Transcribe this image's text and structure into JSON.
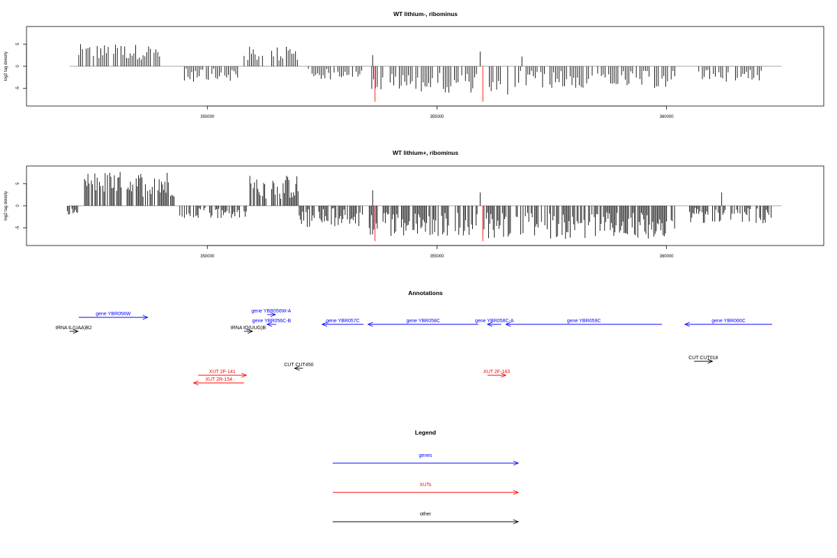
{
  "colors": {
    "gene": "#0000ff",
    "xut": "#ff0000",
    "other": "#000000",
    "highlight": "#ff4444",
    "axis": "#000000",
    "baseline": "#888888"
  },
  "chart_data": [
    {
      "type": "bar",
      "title": "WT lithium-, ribominus",
      "ylabel": "log2 tag density",
      "xlim": [
        346700,
        362800
      ],
      "ylim": [
        -8.5,
        8.5
      ],
      "xticks": [
        350000,
        355000,
        360000
      ],
      "yticks": [
        5,
        0,
        -5
      ],
      "density_profile": {
        "bin_width": 40,
        "segments": [
          {
            "x": [
              347200,
              349000
            ],
            "min": 1.5,
            "max": 5.0,
            "sign": 1
          },
          {
            "x": [
              349500,
              350700
            ],
            "min": 0.5,
            "max": 3.5,
            "sign": -1
          },
          {
            "x": [
              350800,
              352000
            ],
            "min": 1.0,
            "max": 4.5,
            "sign": 1
          },
          {
            "x": [
              352200,
              353400
            ],
            "min": 0.5,
            "max": 3.0,
            "sign": -1
          },
          {
            "x": [
              353500,
              355900
            ],
            "min": 1.5,
            "max": 6.0,
            "sign": -1
          },
          {
            "x": [
              356100,
              356600
            ],
            "min": 3.0,
            "max": 7.0,
            "sign": -1
          },
          {
            "x": [
              356700,
              360200
            ],
            "min": 1.0,
            "max": 5.0,
            "sign": -1
          },
          {
            "x": [
              360700,
              362100
            ],
            "min": 0.5,
            "max": 3.5,
            "sign": -1
          }
        ],
        "peaks": [
          {
            "x": 353600,
            "y": 2.5
          },
          {
            "x": 355940,
            "y": 3.3
          },
          {
            "x": 356850,
            "y": 2.2
          }
        ]
      },
      "highlights": [
        {
          "x": 353650,
          "y": -8.0
        },
        {
          "x": 356000,
          "y": -8.0
        }
      ]
    },
    {
      "type": "bar",
      "title": "WT lithium+, ribominus",
      "ylabel": "log2 tag density",
      "xlim": [
        346700,
        362800
      ],
      "ylim": [
        -8.5,
        8.5
      ],
      "xticks": [
        350000,
        355000,
        360000
      ],
      "yticks": [
        5,
        0,
        -5
      ],
      "density_profile": {
        "bin_width": 25,
        "segments": [
          {
            "x": [
              346950,
              347200
            ],
            "min": 0.5,
            "max": 2.0,
            "sign": -1
          },
          {
            "x": [
              347300,
              349300
            ],
            "min": 2.0,
            "max": 7.8,
            "sign": 1
          },
          {
            "x": [
              349400,
              350900
            ],
            "min": 0.5,
            "max": 3.0,
            "sign": -1
          },
          {
            "x": [
              350900,
              352000
            ],
            "min": 1.5,
            "max": 7.0,
            "sign": 1
          },
          {
            "x": [
              352000,
              353400
            ],
            "min": 0.5,
            "max": 5.0,
            "sign": -1
          },
          {
            "x": [
              353500,
              355900
            ],
            "min": 1.5,
            "max": 7.0,
            "sign": -1
          },
          {
            "x": [
              356000,
              360200
            ],
            "min": 1.5,
            "max": 7.5,
            "sign": -1
          },
          {
            "x": [
              360500,
              362300
            ],
            "min": 0.5,
            "max": 4.0,
            "sign": -1
          }
        ],
        "peaks": [
          {
            "x": 353600,
            "y": 3.5
          },
          {
            "x": 355940,
            "y": 3.0
          },
          {
            "x": 361200,
            "y": 3.0
          }
        ]
      },
      "highlights": [
        {
          "x": 353650,
          "y": -8.0
        },
        {
          "x": 356000,
          "y": -8.0
        }
      ]
    }
  ],
  "annotations": {
    "title": "Annotations",
    "items": [
      {
        "label": "gene YBR056W",
        "kind": "gene",
        "start": 347200,
        "end": 348700,
        "strand": "+",
        "row": 1
      },
      {
        "label": "gene YBR056W-A",
        "kind": "gene",
        "start": 351300,
        "end": 351400,
        "strand": "+",
        "row": 0
      },
      {
        "label": "gene YBR056C-B",
        "kind": "gene",
        "start": 351300,
        "end": 351500,
        "strand": "-",
        "row": 2
      },
      {
        "label": "gene YBR057C",
        "kind": "gene",
        "start": 352500,
        "end": 353400,
        "strand": "-",
        "row": 2
      },
      {
        "label": "gene YBR058C",
        "kind": "gene",
        "start": 353500,
        "end": 355900,
        "strand": "-",
        "row": 2
      },
      {
        "label": "gene YBR058C-A",
        "kind": "gene",
        "start": 356100,
        "end": 356400,
        "strand": "-",
        "row": 2
      },
      {
        "label": "gene YBR059C",
        "kind": "gene",
        "start": 356500,
        "end": 359900,
        "strand": "-",
        "row": 2
      },
      {
        "label": "gene YBR060C",
        "kind": "gene",
        "start": 360400,
        "end": 362300,
        "strand": "-",
        "row": 2
      },
      {
        "label": "tRNA tL(UAA)B2",
        "kind": "other",
        "start": 347000,
        "end": 347100,
        "strand": "+",
        "row": 3
      },
      {
        "label": "tRNA tQ(UUG)B",
        "kind": "other",
        "start": 350800,
        "end": 350900,
        "strand": "+",
        "row": 3
      },
      {
        "label": "CUT CUT450",
        "kind": "other",
        "start": 351900,
        "end": 352000,
        "strand": "-",
        "row": 4
      },
      {
        "label": "CUT CUT018",
        "kind": "other",
        "start": 360600,
        "end": 361000,
        "strand": "+",
        "row": 5
      },
      {
        "label": "XUT 2F-141",
        "kind": "xut",
        "start": 349800,
        "end": 350850,
        "strand": "+",
        "row": 6
      },
      {
        "label": "XUT 2R-154",
        "kind": "xut",
        "start": 349700,
        "end": 350800,
        "strand": "-",
        "row": 7
      },
      {
        "label": "XUT 2F-143",
        "kind": "xut",
        "start": 356100,
        "end": 356500,
        "strand": "+",
        "row": 6
      }
    ]
  },
  "legend": {
    "title": "Legend",
    "items": [
      {
        "label": "genes",
        "kind": "gene"
      },
      {
        "label": "XUTs",
        "kind": "xut"
      },
      {
        "label": "other",
        "kind": "other"
      }
    ]
  }
}
